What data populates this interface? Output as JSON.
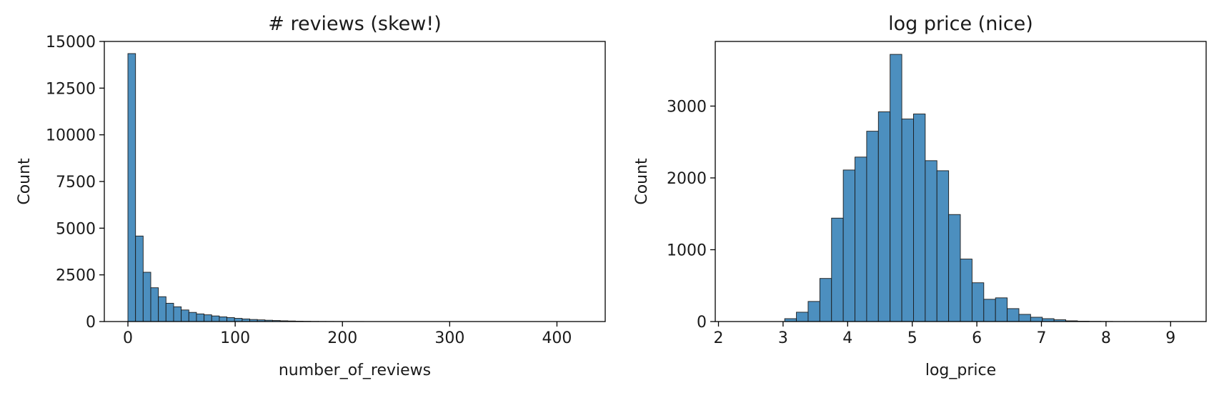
{
  "chart_data": [
    {
      "type": "bar",
      "title": "# reviews (skew!)",
      "xlabel": "number_of_reviews",
      "ylabel": "Count",
      "xlim": [
        -22,
        445
      ],
      "ylim": [
        0,
        15000
      ],
      "xticks": [
        0,
        100,
        200,
        300,
        400
      ],
      "xtick_labels": [
        "0",
        "100",
        "200",
        "300",
        "400"
      ],
      "yticks": [
        0,
        2500,
        5000,
        7500,
        10000,
        12500,
        15000
      ],
      "ytick_labels": [
        "0",
        "2500",
        "5000",
        "7500",
        "10000",
        "12500",
        "15000"
      ],
      "bin_start": 0,
      "bin_width": 7.1,
      "values": [
        14350,
        4580,
        2640,
        1810,
        1330,
        980,
        790,
        620,
        490,
        410,
        360,
        300,
        250,
        210,
        170,
        140,
        110,
        90,
        70,
        55,
        40,
        30,
        20,
        15,
        10,
        8,
        6,
        5,
        4,
        3,
        3,
        2,
        2,
        2,
        1,
        1,
        1,
        1,
        1,
        1,
        1,
        1,
        1,
        1,
        1,
        1,
        1,
        1,
        1,
        1,
        1,
        1,
        1,
        1,
        1,
        1,
        1,
        1,
        1
      ],
      "color": "#4c8fbf",
      "grid": false,
      "legend": "none"
    },
    {
      "type": "bar",
      "title": "log price (nice)",
      "xlabel": "log_price",
      "ylabel": "Count",
      "xlim": [
        1.95,
        9.55
      ],
      "ylim": [
        0,
        3900
      ],
      "xticks": [
        2,
        3,
        4,
        5,
        6,
        7,
        8,
        9
      ],
      "xtick_labels": [
        "2",
        "3",
        "4",
        "5",
        "6",
        "7",
        "8",
        "9"
      ],
      "yticks": [
        0,
        1000,
        2000,
        3000
      ],
      "ytick_labels": [
        "0",
        "1000",
        "2000",
        "3000"
      ],
      "bin_start": 2.3,
      "bin_width": 0.1813,
      "values": [
        0,
        0,
        0,
        0,
        40,
        130,
        280,
        600,
        1440,
        2110,
        2290,
        2650,
        2920,
        3720,
        2820,
        2890,
        2240,
        2100,
        1490,
        870,
        540,
        310,
        330,
        180,
        100,
        60,
        40,
        25,
        10,
        5,
        3,
        2,
        1,
        1,
        1,
        1,
        1,
        1,
        1,
        1
      ],
      "color": "#4c8fbf",
      "grid": false,
      "legend": "none"
    }
  ]
}
